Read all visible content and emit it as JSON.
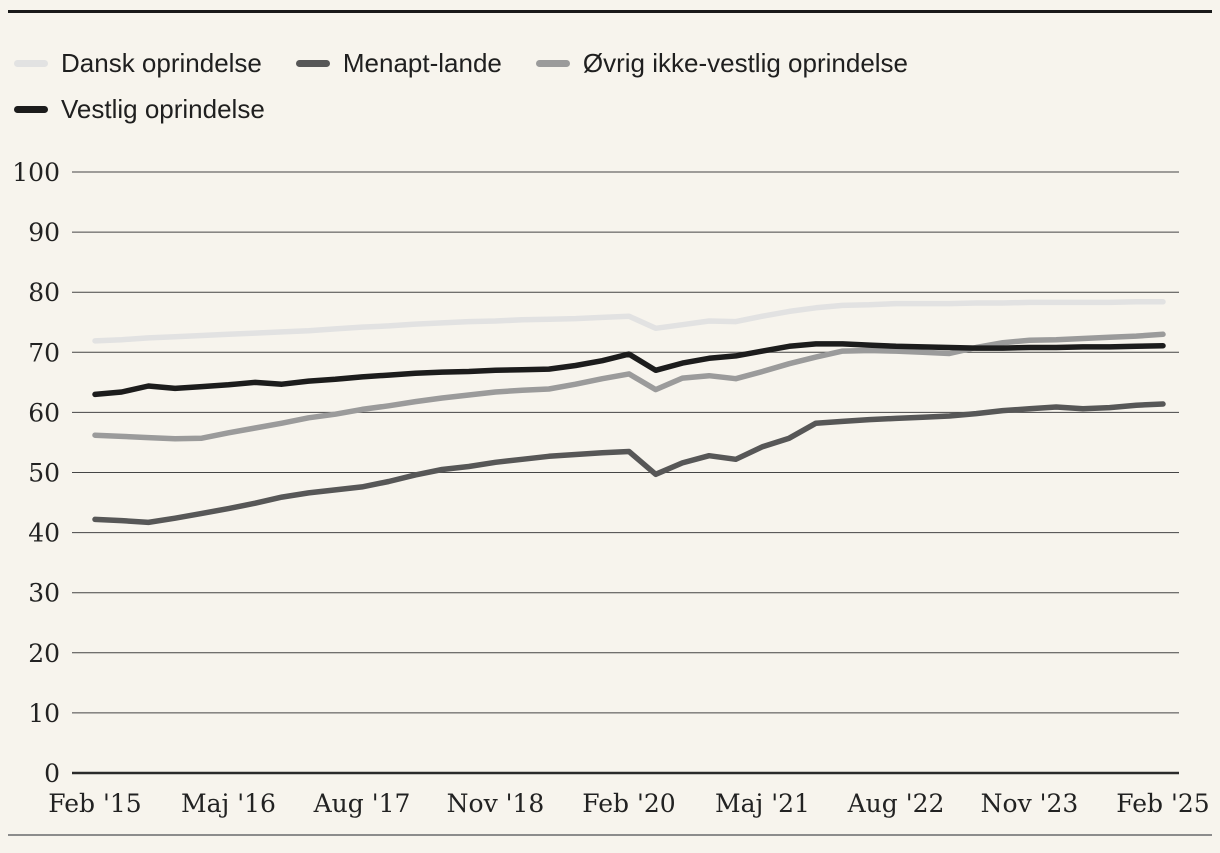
{
  "page": {
    "background_color": "#f7f4ed",
    "top_rule_color": "#1a1a1a",
    "bottom_rule_color": "#8c8c8c",
    "gridline_color": "#454545",
    "axis_line_color": "#2a2a2a",
    "tick_label_color": "#222222"
  },
  "chart_data": {
    "type": "line",
    "title": "",
    "xlabel": "",
    "ylabel": "",
    "ylim": [
      0,
      100
    ],
    "y_ticks": [
      0,
      10,
      20,
      30,
      40,
      50,
      60,
      70,
      80,
      90,
      100
    ],
    "grid": true,
    "legend_position": "top",
    "n_points": 41,
    "x_frequency": "quarterly",
    "x_start": "Feb 2015",
    "x_end": "Feb 2025",
    "x_tick_indices": [
      0,
      5,
      10,
      15,
      20,
      25,
      30,
      35,
      40
    ],
    "x_tick_labels": [
      "Feb '15",
      "Maj '16",
      "Aug '17",
      "Nov '18",
      "Feb '20",
      "Maj '21",
      "Aug '22",
      "Nov '23",
      "Feb '25"
    ],
    "series": [
      {
        "name": "Dansk oprindelse",
        "color": "#e2e2e2",
        "values": [
          71.9,
          72.1,
          72.4,
          72.6,
          72.8,
          73.0,
          73.2,
          73.4,
          73.6,
          73.9,
          74.2,
          74.4,
          74.7,
          74.9,
          75.1,
          75.2,
          75.4,
          75.5,
          75.6,
          75.8,
          76.0,
          74.0,
          74.6,
          75.2,
          75.1,
          76.0,
          76.8,
          77.4,
          77.8,
          77.9,
          78.1,
          78.1,
          78.1,
          78.2,
          78.2,
          78.3,
          78.3,
          78.3,
          78.3,
          78.4,
          78.4
        ]
      },
      {
        "name": "Menapt-lande",
        "color": "#575757",
        "values": [
          42.2,
          42.0,
          41.7,
          42.4,
          43.2,
          44.0,
          44.9,
          45.9,
          46.6,
          47.1,
          47.6,
          48.5,
          49.6,
          50.5,
          51.0,
          51.7,
          52.2,
          52.7,
          53.0,
          53.3,
          53.5,
          49.7,
          51.6,
          52.8,
          52.2,
          54.3,
          55.7,
          58.2,
          58.5,
          58.8,
          59.0,
          59.2,
          59.4,
          59.8,
          60.3,
          60.6,
          60.9,
          60.6,
          60.8,
          61.2,
          61.4
        ]
      },
      {
        "name": "Øvrig ikke-vestlig oprindelse",
        "color": "#9b9b9b",
        "values": [
          56.2,
          56.0,
          55.8,
          55.6,
          55.7,
          56.6,
          57.4,
          58.2,
          59.1,
          59.7,
          60.5,
          61.1,
          61.8,
          62.4,
          62.9,
          63.4,
          63.7,
          63.9,
          64.7,
          65.6,
          66.4,
          63.8,
          65.7,
          66.1,
          65.6,
          66.8,
          68.1,
          69.2,
          70.2,
          70.3,
          70.2,
          70.0,
          69.8,
          70.8,
          71.6,
          72.0,
          72.1,
          72.3,
          72.5,
          72.7,
          73.0
        ]
      },
      {
        "name": "Vestlig oprindelse",
        "color": "#1c1c1c",
        "values": [
          63.0,
          63.4,
          64.4,
          64.0,
          64.3,
          64.6,
          65.0,
          64.7,
          65.2,
          65.5,
          65.9,
          66.2,
          66.5,
          66.7,
          66.8,
          67.0,
          67.1,
          67.2,
          67.8,
          68.6,
          69.7,
          67.0,
          68.2,
          69.0,
          69.4,
          70.2,
          71.0,
          71.4,
          71.4,
          71.2,
          71.0,
          70.9,
          70.8,
          70.7,
          70.7,
          70.8,
          70.8,
          70.9,
          70.9,
          71.0,
          71.1
        ]
      }
    ]
  }
}
